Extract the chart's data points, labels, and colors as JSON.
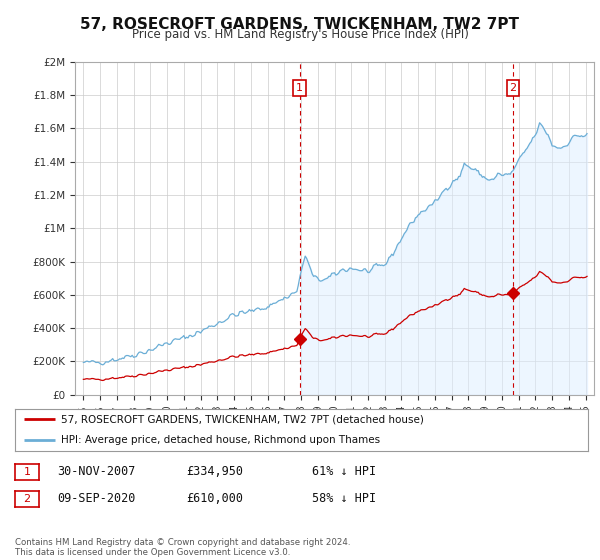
{
  "title": "57, ROSECROFT GARDENS, TWICKENHAM, TW2 7PT",
  "subtitle": "Price paid vs. HM Land Registry's House Price Index (HPI)",
  "sale1_label": "1",
  "sale1_date_str": "30-NOV-2007",
  "sale1_price": 334950,
  "sale1_pct": "61% ↓ HPI",
  "sale2_label": "2",
  "sale2_date_str": "09-SEP-2020",
  "sale2_price": 610000,
  "sale2_pct": "58% ↓ HPI",
  "legend_line1": "57, ROSECROFT GARDENS, TWICKENHAM, TW2 7PT (detached house)",
  "legend_line2": "HPI: Average price, detached house, Richmond upon Thames",
  "footer": "Contains HM Land Registry data © Crown copyright and database right 2024.\nThis data is licensed under the Open Government Licence v3.0.",
  "hpi_color": "#6baed6",
  "hpi_fill_color": "#ddeeff",
  "price_color": "#cc0000",
  "vline_color": "#cc0000",
  "background_color": "#ffffff",
  "grid_color": "#cccccc",
  "ylim": [
    0,
    2000000
  ],
  "yticks": [
    0,
    200000,
    400000,
    600000,
    800000,
    1000000,
    1200000,
    1400000,
    1600000,
    1800000,
    2000000
  ],
  "ytick_labels": [
    "£0",
    "£200K",
    "£400K",
    "£600K",
    "£800K",
    "£1M",
    "£1.2M",
    "£1.4M",
    "£1.6M",
    "£1.8M",
    "£2M"
  ],
  "xlim_left": 1994.5,
  "xlim_right": 2025.5,
  "xticks": [
    1995,
    1996,
    1997,
    1998,
    1999,
    2000,
    2001,
    2002,
    2003,
    2004,
    2005,
    2006,
    2007,
    2008,
    2009,
    2010,
    2011,
    2012,
    2013,
    2014,
    2015,
    2016,
    2017,
    2018,
    2019,
    2020,
    2021,
    2022,
    2023,
    2024,
    2025
  ],
  "sale1_yr": 2007.917,
  "sale2_yr": 2020.667
}
